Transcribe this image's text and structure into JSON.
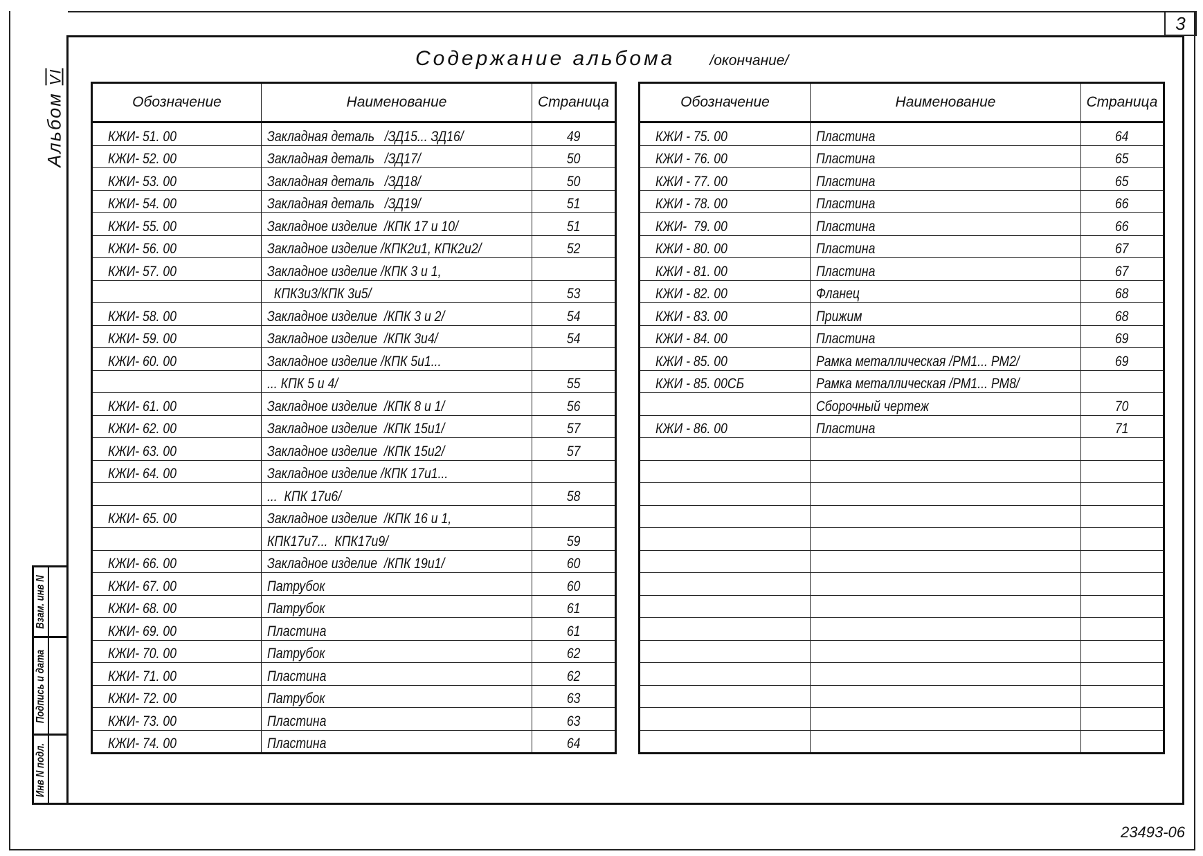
{
  "page_number": "3",
  "title": "Содержание альбома",
  "title_suffix": "/окончание/",
  "album_label": "Альбом",
  "album_number": "VI",
  "stamp": {
    "replacement": "Взам. инв N",
    "signature": "Подпись и дата",
    "inventory": "Инв N подл."
  },
  "headers": {
    "code": "Обозначение",
    "name": "Наименование",
    "page": "Страница"
  },
  "left_table": [
    {
      "code": "КЖИ- 51. 00",
      "name": "Закладная деталь   /ЗД15... ЗД16/",
      "page": "49"
    },
    {
      "code": "КЖИ- 52. 00",
      "name": "Закладная деталь   /ЗД17/",
      "page": "50"
    },
    {
      "code": "КЖИ- 53. 00",
      "name": "Закладная деталь   /ЗД18/",
      "page": "50"
    },
    {
      "code": "КЖИ- 54. 00",
      "name": "Закладная деталь   /ЗД19/",
      "page": "51"
    },
    {
      "code": "КЖИ- 55. 00",
      "name": "Закладное изделие  /КПК 17 и 10/",
      "page": "51"
    },
    {
      "code": "КЖИ- 56. 00",
      "name": "Закладное изделие /КПК2и1, КПК2и2/",
      "page": "52"
    },
    {
      "code": "КЖИ- 57. 00",
      "name": "Закладное изделие /КПК 3 и 1,",
      "page": ""
    },
    {
      "code": "",
      "name": "  КПК3и3/КПК 3и5/",
      "page": "53"
    },
    {
      "code": "КЖИ- 58. 00",
      "name": "Закладное изделие  /КПК 3 и 2/",
      "page": "54"
    },
    {
      "code": "КЖИ- 59. 00",
      "name": "Закладное изделие  /КПК 3и4/",
      "page": "54"
    },
    {
      "code": "КЖИ- 60. 00",
      "name": "Закладное изделие /КПК 5и1...",
      "page": ""
    },
    {
      "code": "",
      "name": "... КПК 5 и 4/",
      "page": "55"
    },
    {
      "code": "КЖИ- 61. 00",
      "name": "Закладное изделие  /КПК 8 и 1/",
      "page": "56"
    },
    {
      "code": "КЖИ- 62. 00",
      "name": "Закладное изделие  /КПК 15и1/",
      "page": "57"
    },
    {
      "code": "КЖИ- 63. 00",
      "name": "Закладное изделие  /КПК 15и2/",
      "page": "57"
    },
    {
      "code": "КЖИ- 64. 00",
      "name": "Закладное изделие /КПК 17и1...",
      "page": ""
    },
    {
      "code": "",
      "name": "...  КПК 17и6/",
      "page": "58"
    },
    {
      "code": "КЖИ- 65. 00",
      "name": "Закладное изделие  /КПК 16 и 1,",
      "page": ""
    },
    {
      "code": "",
      "name": "КПК17и7...  КПК17и9/",
      "page": "59"
    },
    {
      "code": "КЖИ- 66. 00",
      "name": "Закладное изделие  /КПК 19и1/",
      "page": "60"
    },
    {
      "code": "КЖИ- 67. 00",
      "name": "Патрубок",
      "page": "60"
    },
    {
      "code": "КЖИ- 68. 00",
      "name": "Патрубок",
      "page": "61"
    },
    {
      "code": "КЖИ- 69. 00",
      "name": "Пластина",
      "page": "61"
    },
    {
      "code": "КЖИ- 70. 00",
      "name": "Патрубок",
      "page": "62"
    },
    {
      "code": "КЖИ- 71. 00",
      "name": "Пластина",
      "page": "62"
    },
    {
      "code": "КЖИ- 72. 00",
      "name": "Патрубок",
      "page": "63"
    },
    {
      "code": "КЖИ- 73. 00",
      "name": "Пластина",
      "page": "63"
    },
    {
      "code": "КЖИ- 74. 00",
      "name": "Пластина",
      "page": "64"
    }
  ],
  "right_table": [
    {
      "code": "КЖИ - 75. 00",
      "name": "Пластина",
      "page": "64"
    },
    {
      "code": "КЖИ - 76. 00",
      "name": "Пластина",
      "page": "65"
    },
    {
      "code": "КЖИ - 77. 00",
      "name": "Пластина",
      "page": "65"
    },
    {
      "code": "КЖИ - 78. 00",
      "name": "Пластина",
      "page": "66"
    },
    {
      "code": "КЖИ-  79. 00",
      "name": "Пластина",
      "page": "66"
    },
    {
      "code": "КЖИ - 80. 00",
      "name": "Пластина",
      "page": "67"
    },
    {
      "code": "КЖИ - 81. 00",
      "name": "Пластина",
      "page": "67"
    },
    {
      "code": "КЖИ - 82. 00",
      "name": "Фланец",
      "page": "68"
    },
    {
      "code": "КЖИ - 83. 00",
      "name": "Прижим",
      "page": "68"
    },
    {
      "code": "КЖИ - 84. 00",
      "name": "Пластина",
      "page": "69"
    },
    {
      "code": "КЖИ - 85. 00",
      "name": "Рамка металлическая /РМ1... РМ2/",
      "page": "69"
    },
    {
      "code": "КЖИ - 85. 00СБ",
      "name": "Рамка металлическая /РМ1... РМ8/",
      "page": ""
    },
    {
      "code": "",
      "name": "Сборочный чертеж",
      "page": "70"
    },
    {
      "code": "КЖИ - 86. 00",
      "name": "Пластина",
      "page": "71"
    }
  ],
  "document_code": "23493-06"
}
